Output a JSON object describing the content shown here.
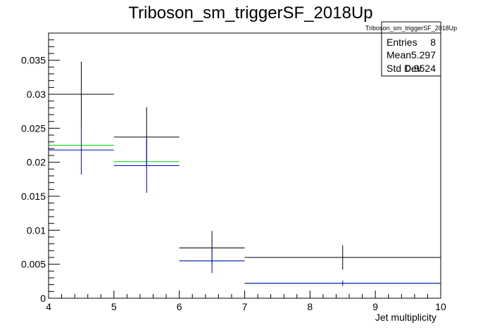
{
  "chart_data": {
    "type": "histogram",
    "title": "Triboson_sm_triggerSF_2018Up",
    "xlabel": "Jet multiplicity",
    "ylabel": "",
    "xlim": [
      4,
      10
    ],
    "ylim": [
      0,
      0.039
    ],
    "x_ticks": [
      "4",
      "5",
      "6",
      "7",
      "8",
      "9",
      "10"
    ],
    "y_ticks": [
      "0",
      "0.005",
      "0.01",
      "0.015",
      "0.02",
      "0.025",
      "0.03",
      "0.035"
    ],
    "grid": false,
    "series": [
      {
        "color": "#000000",
        "bins": [
          {
            "xlo": 4,
            "xhi": 5,
            "x": 4.5,
            "y": 0.03,
            "err": 0.0048
          },
          {
            "xlo": 5,
            "xhi": 6,
            "x": 5.5,
            "y": 0.0237,
            "err": 0.0044
          },
          {
            "xlo": 6,
            "xhi": 7,
            "x": 6.5,
            "y": 0.0074,
            "err": 0.0025
          },
          {
            "xlo": 7,
            "xhi": 10,
            "x": 8.5,
            "y": 0.006,
            "err": 0.0018
          }
        ]
      },
      {
        "color": "#00cc00",
        "bins": [
          {
            "xlo": 4,
            "xhi": 5,
            "x": 4.5,
            "y": 0.0225,
            "err": 0
          },
          {
            "xlo": 5,
            "xhi": 6,
            "x": 5.5,
            "y": 0.0201,
            "err": 0
          },
          {
            "xlo": 6,
            "xhi": 7,
            "x": 6.5,
            "y": 0.0055,
            "err": 0
          },
          {
            "xlo": 7,
            "xhi": 10,
            "x": 8.5,
            "y": 0.0022,
            "err": 0
          }
        ]
      },
      {
        "color": "#0000cc",
        "bins": [
          {
            "xlo": 4,
            "xhi": 5,
            "x": 4.5,
            "y": 0.0218,
            "err": 0.0036
          },
          {
            "xlo": 5,
            "xhi": 6,
            "x": 5.5,
            "y": 0.0195,
            "err": 0.004
          },
          {
            "xlo": 6,
            "xhi": 7,
            "x": 6.5,
            "y": 0.0055,
            "err": 0.0018
          },
          {
            "xlo": 7,
            "xhi": 10,
            "x": 8.5,
            "y": 0.0022,
            "err": 0.0004
          }
        ]
      }
    ],
    "stats_box": {
      "title": "Triboson_sm_triggerSF_2018Up",
      "rows": [
        {
          "label": "Entries",
          "value": "8"
        },
        {
          "label": "Mean",
          "value": "5.297"
        },
        {
          "label": "Std Dev",
          "value": "0.9524"
        }
      ],
      "position": "top-right"
    }
  }
}
